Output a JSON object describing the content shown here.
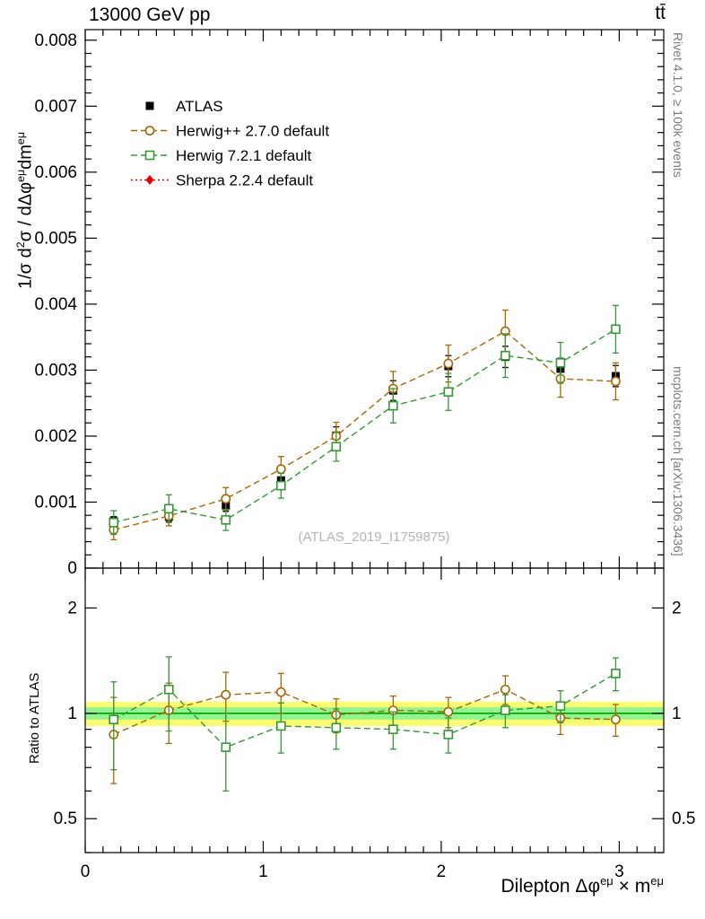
{
  "header": {
    "left": "13000 GeV pp",
    "right": "tt̄"
  },
  "watermark": "(ATLAS_2019_I1759875)",
  "right_margin": {
    "top": "Rivet 4.1.0, ≥ 100k events",
    "bottom": "mcplots.cern.ch [arXiv:1306.3436]"
  },
  "labels": {
    "main_ylabel_parts": [
      {
        "t": "1/"
      },
      {
        "t": "σ"
      },
      {
        "t": " d"
      },
      {
        "t": "2",
        "sup": true
      },
      {
        "t": "σ"
      },
      {
        "t": " / d"
      },
      {
        "t": "Δ"
      },
      {
        "t": "φ"
      },
      {
        "t": "eμ",
        "sup": true
      },
      {
        "t": "dm"
      },
      {
        "t": "eμ",
        "sup": true
      }
    ],
    "xlabel_parts": [
      {
        "t": "Dilepton "
      },
      {
        "t": "Δ"
      },
      {
        "t": "φ"
      },
      {
        "t": "eμ",
        "sup": true
      },
      {
        "t": " × m"
      },
      {
        "t": "eμ",
        "sup": true
      }
    ]
  },
  "chart_data": {
    "type": "scatter",
    "title": "13000 GeV pp",
    "xlabel": "Dilepton Δφ^{eμ} × m^{eμ}",
    "ylabel": "1/σ d²σ / dΔφ^{eμ} dm^{eμ}",
    "xlim": [
      0,
      3.25
    ],
    "x_centers": [
      0.16,
      0.47,
      0.79,
      1.1,
      1.41,
      1.73,
      2.04,
      2.36,
      2.67,
      2.98
    ],
    "xticks": {
      "major": [
        0,
        1,
        2,
        3
      ],
      "minor_step": 0.1
    },
    "main": {
      "ylim": [
        0,
        0.00816
      ],
      "ytick_step": 0.001,
      "ytick_minor": 0.0002,
      "grid": false
    },
    "ratio": {
      "ylabel": "Ratio to ATLAS",
      "ylog": true,
      "ylim": [
        0.4,
        2.6
      ],
      "yticks_major": [
        0.5,
        1,
        2
      ],
      "yticks_minor": [
        0.4,
        0.6,
        0.7,
        0.8,
        0.9
      ],
      "bands": [
        {
          "range": [
            0.92,
            1.08
          ],
          "color": "#fcfc70"
        },
        {
          "range": [
            0.96,
            1.04
          ],
          "color": "#90f590"
        }
      ],
      "line_color": "#00a000"
    },
    "series": [
      {
        "name": "ATLAS",
        "marker": "filled-square",
        "color": "#000000",
        "line": "none",
        "values": [
          0.00071,
          0.00078,
          0.00095,
          0.00133,
          0.00201,
          0.00269,
          0.00306,
          0.0032,
          0.00302,
          0.00291
        ],
        "errors": [
          7e-05,
          7e-05,
          9e-05,
          0.00011,
          0.00013,
          0.00015,
          0.00016,
          0.00016,
          0.00016,
          0.00016
        ],
        "ratio": [],
        "ratio_errors": []
      },
      {
        "name": "Herwig++ 2.7.0 default",
        "marker": "open-circle",
        "color": "#aa6600",
        "line": "dashed",
        "values": [
          0.00058,
          0.00079,
          0.00105,
          0.0015,
          0.002,
          0.00272,
          0.0031,
          0.00359,
          0.00287,
          0.00283
        ],
        "errors": [
          0.00015,
          0.00015,
          0.00017,
          0.00019,
          0.00021,
          0.00026,
          0.00028,
          0.00032,
          0.00028,
          0.00028
        ],
        "ratio": [
          0.87,
          1.02,
          1.13,
          1.15,
          0.99,
          1.02,
          1.01,
          1.17,
          0.97,
          0.96
        ],
        "ratio_errors": [
          0.24,
          0.2,
          0.18,
          0.15,
          0.11,
          0.1,
          0.1,
          0.11,
          0.1,
          0.1
        ]
      },
      {
        "name": "Herwig 7.2.1 default",
        "marker": "open-square",
        "color": "#339933",
        "line": "dashed",
        "values": [
          0.00069,
          0.0009,
          0.00073,
          0.00125,
          0.00184,
          0.00246,
          0.00267,
          0.00322,
          0.00311,
          0.00362
        ],
        "errors": [
          0.00018,
          0.00021,
          0.00016,
          0.00019,
          0.00022,
          0.00026,
          0.00028,
          0.00033,
          0.00031,
          0.00036
        ],
        "ratio": [
          0.96,
          1.17,
          0.8,
          0.92,
          0.91,
          0.9,
          0.87,
          1.02,
          1.05,
          1.3
        ],
        "ratio_errors": [
          0.27,
          0.28,
          0.2,
          0.15,
          0.12,
          0.11,
          0.1,
          0.11,
          0.11,
          0.14
        ]
      },
      {
        "name": "Sherpa 2.2.4 default",
        "marker": "filled-diamond",
        "color": "#e60000",
        "line": "dotted",
        "values": [],
        "errors": [],
        "ratio": [],
        "ratio_errors": []
      }
    ]
  }
}
